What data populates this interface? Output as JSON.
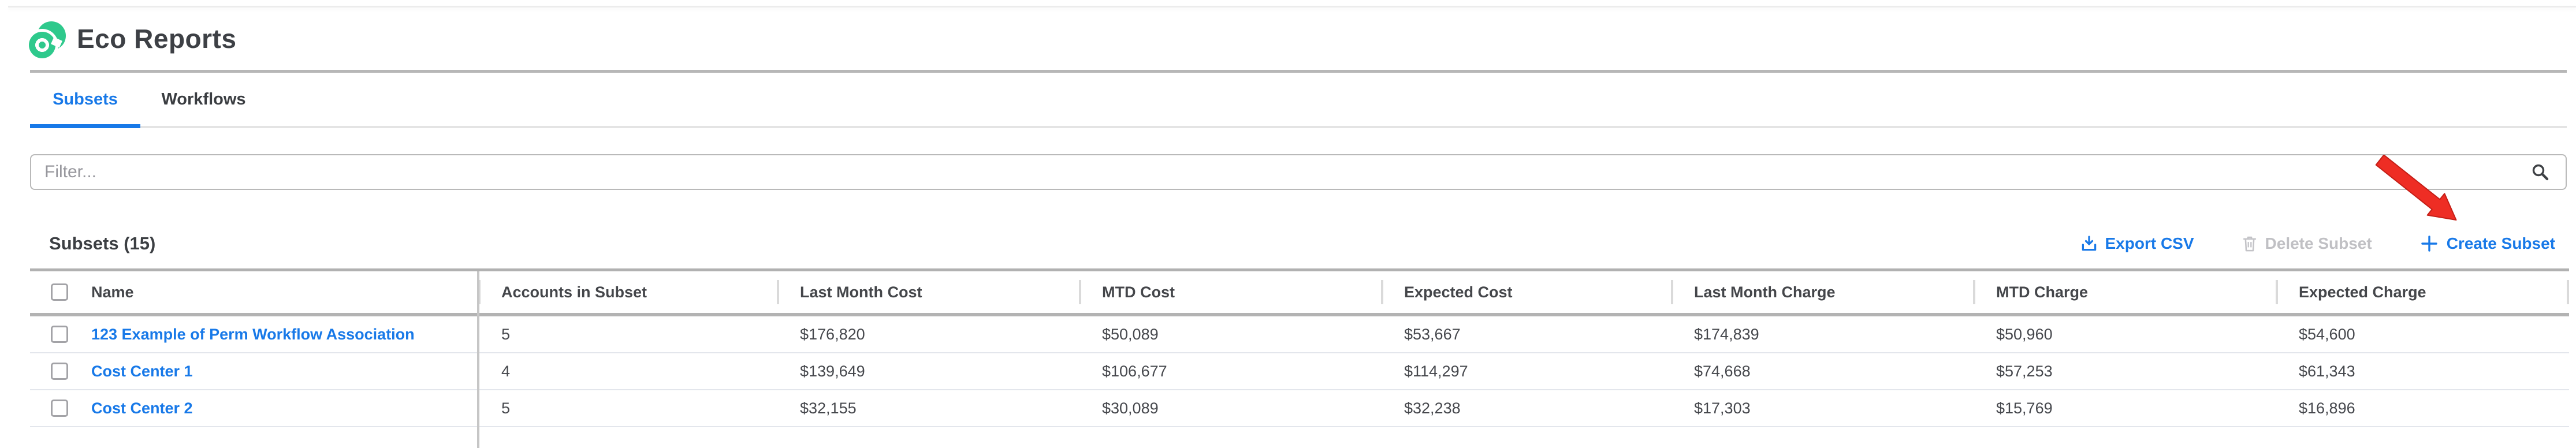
{
  "app": {
    "title": "Eco Reports"
  },
  "tabs": [
    {
      "label": "Subsets",
      "active": true
    },
    {
      "label": "Workflows",
      "active": false
    }
  ],
  "filter": {
    "placeholder": "Filter...",
    "value": ""
  },
  "section": {
    "heading": "Subsets (15)"
  },
  "actions": {
    "export_csv": "Export CSV",
    "delete_subset": "Delete Subset",
    "create_subset": "Create Subset"
  },
  "icons": [
    "search-icon",
    "download-icon",
    "trash-icon",
    "plus-icon",
    "red-arrow-annotation"
  ],
  "table": {
    "columns": [
      "Name",
      "Accounts in Subset",
      "Last Month Cost",
      "MTD Cost",
      "Expected Cost",
      "Last Month Charge",
      "MTD Charge",
      "Expected Charge"
    ],
    "rows": [
      {
        "name": "123 Example of Perm Workflow Association",
        "values": [
          "5",
          "$176,820",
          "$50,089",
          "$53,667",
          "$174,839",
          "$50,960",
          "$54,600"
        ]
      },
      {
        "name": "Cost Center 1",
        "values": [
          "4",
          "$139,649",
          "$106,677",
          "$114,297",
          "$74,668",
          "$57,253",
          "$61,343"
        ]
      },
      {
        "name": "Cost Center 2",
        "values": [
          "5",
          "$32,155",
          "$30,089",
          "$32,238",
          "$17,303",
          "$15,769",
          "$16,896"
        ]
      }
    ]
  },
  "colors": {
    "accent_blue": "#1879e8",
    "brand_green": "#2ec98c",
    "disabled_gray": "#c0c0c4",
    "arrow_red": "#ee2d24",
    "text_dark": "#3d4045"
  }
}
